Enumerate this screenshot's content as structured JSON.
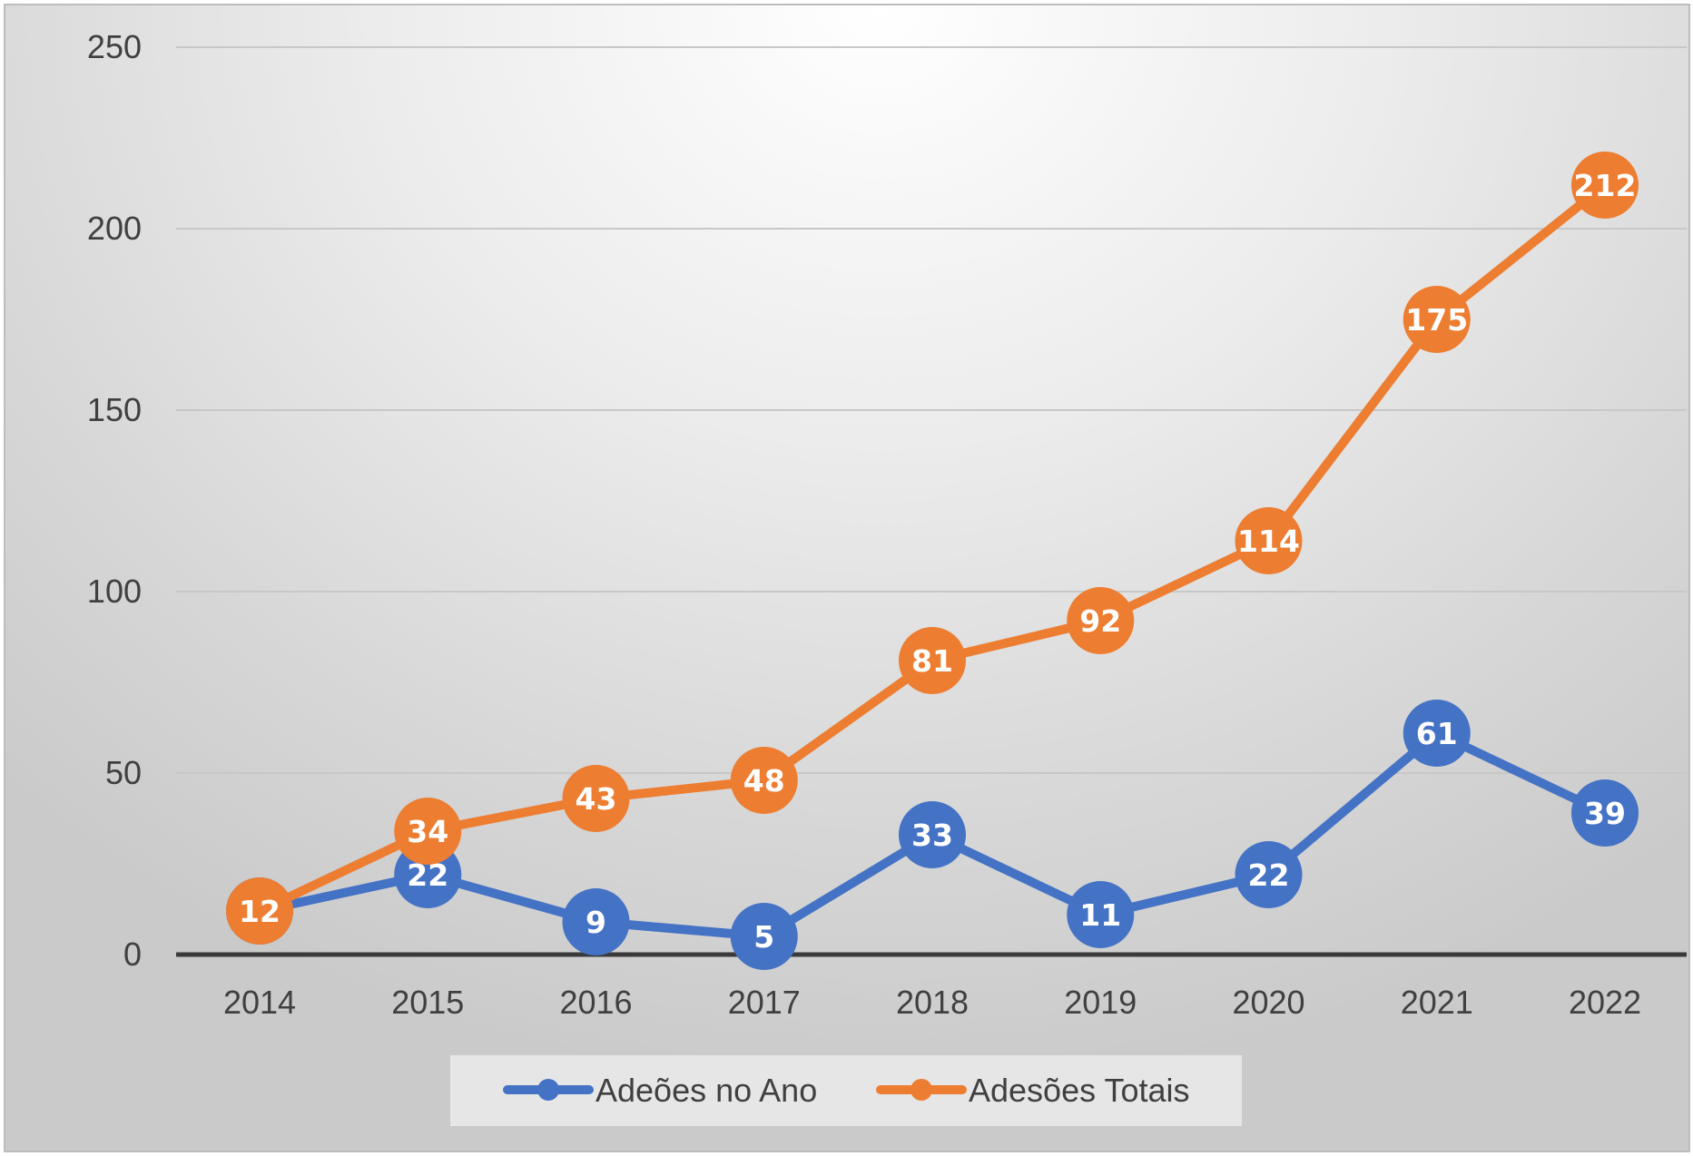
{
  "chart_data": {
    "type": "line",
    "title": "",
    "xlabel": "",
    "ylabel": "",
    "categories": [
      "2014",
      "2015",
      "2016",
      "2017",
      "2018",
      "2019",
      "2020",
      "2021",
      "2022"
    ],
    "ylim": [
      0,
      250
    ],
    "yticks": [
      0,
      50,
      100,
      150,
      200,
      250
    ],
    "grid": true,
    "legend_position": "bottom",
    "series": [
      {
        "name": "Adeões no Ano",
        "color": "#4472C4",
        "values": [
          12,
          22,
          9,
          5,
          33,
          11,
          22,
          61,
          39
        ],
        "data_labels": true
      },
      {
        "name": "Adesões Totais",
        "color": "#ED7D31",
        "values": [
          12,
          34,
          43,
          48,
          81,
          92,
          114,
          175,
          212
        ],
        "data_labels": true
      }
    ]
  }
}
